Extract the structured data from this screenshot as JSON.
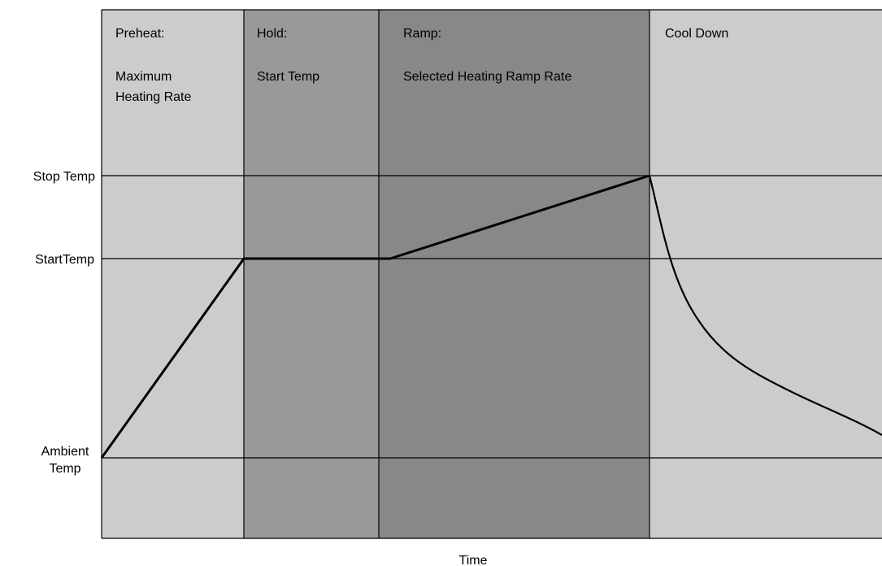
{
  "colors": {
    "phase_light": "#cccccc",
    "phase_medium": "#999999",
    "phase_dark": "#888888",
    "line": "#000000"
  },
  "phases": [
    {
      "name": "preheat",
      "title": "Preheat:",
      "desc_lines": [
        "Maximum",
        "Heating Rate"
      ],
      "color": "#cccccc"
    },
    {
      "name": "hold",
      "title": "Hold:",
      "desc_lines": [
        "Start Temp"
      ],
      "color": "#999999"
    },
    {
      "name": "ramp",
      "title": "Ramp:",
      "desc_lines": [
        "Selected Heating Ramp Rate"
      ],
      "color": "#888888"
    },
    {
      "name": "cool-down",
      "title": "Cool Down",
      "desc_lines": [],
      "color": "#cccccc"
    }
  ],
  "levels": [
    {
      "name": "stop-temp",
      "label_lines": [
        "Stop Temp"
      ]
    },
    {
      "name": "start-temp",
      "label_lines": [
        "StartTemp"
      ]
    },
    {
      "name": "ambient-temp",
      "label_lines": [
        "Ambient",
        "Temp"
      ]
    }
  ],
  "x_axis_label": "Time"
}
